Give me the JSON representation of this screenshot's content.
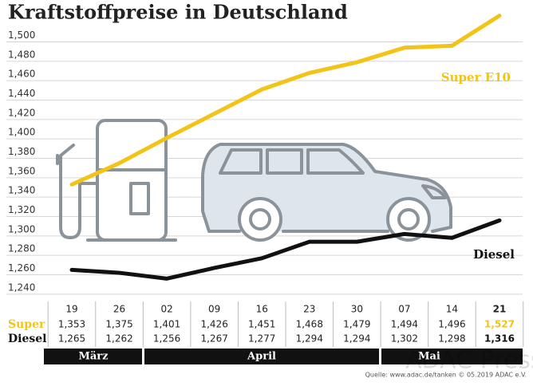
{
  "chart_data": {
    "type": "line",
    "title": "Kraftstoffpreise in Deutschland",
    "categories": [
      "19",
      "26",
      "02",
      "09",
      "16",
      "23",
      "30",
      "07",
      "14",
      "21"
    ],
    "series": [
      {
        "name": "Super E10",
        "color": "#f2c418",
        "values": [
          1.353,
          1.375,
          1.401,
          1.426,
          1.451,
          1.468,
          1.479,
          1.494,
          1.496,
          1.527
        ],
        "value_labels": [
          "1,353",
          "1,375",
          "1,401",
          "1,426",
          "1,451",
          "1,468",
          "1,479",
          "1,494",
          "1,496",
          "1,527"
        ]
      },
      {
        "name": "Diesel",
        "color": "#111111",
        "values": [
          1.265,
          1.262,
          1.256,
          1.267,
          1.277,
          1.294,
          1.294,
          1.302,
          1.298,
          1.316
        ],
        "value_labels": [
          "1,265",
          "1,262",
          "1,256",
          "1,267",
          "1,277",
          "1,294",
          "1,294",
          "1,302",
          "1,298",
          "1,316"
        ]
      }
    ],
    "table_row_labels": [
      "Super",
      "Diesel"
    ],
    "months": [
      "März",
      "April",
      "Mai"
    ],
    "ylim": [
      1.23,
      1.53
    ],
    "yticks": [
      {
        "value": 1.24,
        "label": "1,240"
      },
      {
        "value": 1.26,
        "label": "1,260"
      },
      {
        "value": 1.28,
        "label": "1,280"
      },
      {
        "value": 1.3,
        "label": "1,300"
      },
      {
        "value": 1.32,
        "label": "1,320"
      },
      {
        "value": 1.34,
        "label": "1,340"
      },
      {
        "value": 1.36,
        "label": "1,360"
      },
      {
        "value": 1.38,
        "label": "1,380"
      },
      {
        "value": 1.4,
        "label": "1,400"
      },
      {
        "value": 1.42,
        "label": "1,420"
      },
      {
        "value": 1.44,
        "label": "1,440"
      },
      {
        "value": 1.46,
        "label": "1,460"
      },
      {
        "value": 1.48,
        "label": "1,480"
      },
      {
        "value": 1.5,
        "label": "1,500"
      }
    ],
    "grid": true,
    "source": "Quelle: www.adac.de/tanken  © 05.2019  ADAC e.V.",
    "watermark": "ADAC Presse"
  }
}
